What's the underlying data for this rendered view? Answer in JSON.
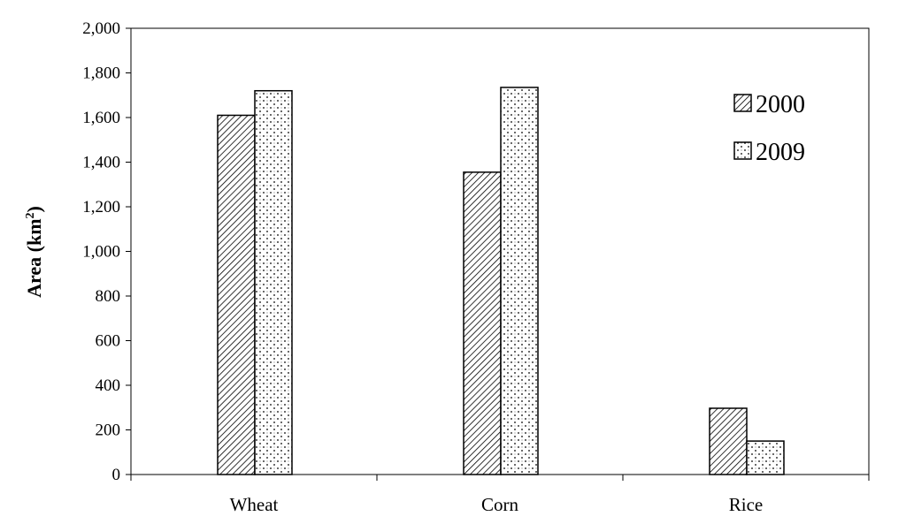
{
  "chart_data": {
    "type": "bar",
    "categories": [
      "Wheat",
      "Corn",
      "Rice"
    ],
    "series": [
      {
        "name": "2000",
        "values": [
          1610,
          1355,
          297
        ],
        "pattern": "diagonal-hatch"
      },
      {
        "name": "2009",
        "values": [
          1720,
          1735,
          150
        ],
        "pattern": "dots"
      }
    ],
    "ylabel_main": "Area (km",
    "ylabel_sup": "2",
    "ylabel_close": ")",
    "ylim": [
      0,
      2000
    ],
    "yticks": [
      0,
      200,
      400,
      600,
      800,
      1000,
      1200,
      1400,
      1600,
      1800,
      2000
    ],
    "ytick_labels": [
      "0",
      "200",
      "400",
      "600",
      "800",
      "1,000",
      "1,200",
      "1,400",
      "1,600",
      "1,800",
      "2,000"
    ],
    "legend_position": "top-right",
    "grid": false
  }
}
